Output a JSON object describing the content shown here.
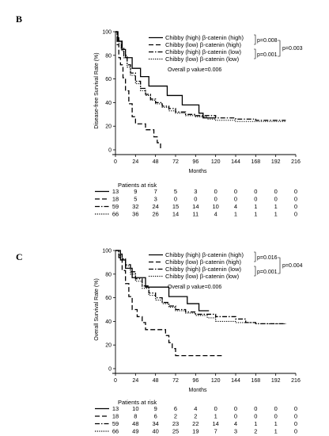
{
  "chart_data": [
    {
      "type": "line",
      "panel_label": "B",
      "ylabel": "Disease-free Survival Rate (%)",
      "xlabel": "Months",
      "xlim": [
        0,
        216
      ],
      "ylim": [
        0,
        100
      ],
      "xticks": [
        0,
        24,
        48,
        72,
        96,
        120,
        144,
        168,
        192,
        216
      ],
      "yticks": [
        0,
        20,
        40,
        60,
        80,
        100
      ],
      "legend": [
        "Chibby (high) β-catenin (high)",
        "Chibby (low) β-catenin (high)",
        "Chibby (high) β-catenin (low)",
        "Chibby (low) β-catenin (low)"
      ],
      "pvalues": [
        "p=0.008",
        "p=0.001",
        "p=0.003"
      ],
      "overall": "Overall p value=0.006",
      "risk_title": "Patients at risk",
      "risk_table": [
        [
          "13",
          "9",
          "7",
          "5",
          "3",
          "0",
          "0",
          "0",
          "0",
          "0"
        ],
        [
          "18",
          "5",
          "3",
          "0",
          "0",
          "0",
          "0",
          "0",
          "0",
          "0"
        ],
        [
          "59",
          "32",
          "24",
          "15",
          "14",
          "10",
          "4",
          "1",
          "1",
          "0"
        ],
        [
          "66",
          "36",
          "26",
          "14",
          "11",
          "4",
          "1",
          "1",
          "1",
          "0"
        ]
      ],
      "series": [
        {
          "style": "solid",
          "points": [
            [
              0,
              100
            ],
            [
              3,
              92
            ],
            [
              8,
              85
            ],
            [
              12,
              78
            ],
            [
              20,
              69
            ],
            [
              30,
              62
            ],
            [
              40,
              54
            ],
            [
              55,
              54
            ],
            [
              62,
              46
            ],
            [
              80,
              38
            ],
            [
              96,
              38
            ],
            [
              100,
              31
            ],
            [
              105,
              27
            ],
            [
              120,
              27
            ]
          ]
        },
        {
          "style": "dashed",
          "points": [
            [
              0,
              100
            ],
            [
              2,
              89
            ],
            [
              4,
              78
            ],
            [
              6,
              72
            ],
            [
              9,
              61
            ],
            [
              12,
              50
            ],
            [
              16,
              39
            ],
            [
              20,
              28
            ],
            [
              24,
              22
            ],
            [
              36,
              17
            ],
            [
              44,
              17
            ],
            [
              46,
              11
            ],
            [
              50,
              6
            ],
            [
              54,
              0
            ]
          ]
        },
        {
          "style": "dashdot",
          "points": [
            [
              0,
              100
            ],
            [
              2,
              96
            ],
            [
              4,
              92
            ],
            [
              7,
              86
            ],
            [
              10,
              80
            ],
            [
              14,
              72
            ],
            [
              18,
              65
            ],
            [
              24,
              58
            ],
            [
              30,
              52
            ],
            [
              36,
              47
            ],
            [
              42,
              43
            ],
            [
              48,
              40
            ],
            [
              56,
              37
            ],
            [
              64,
              35
            ],
            [
              72,
              32
            ],
            [
              84,
              30
            ],
            [
              96,
              29
            ],
            [
              120,
              27
            ],
            [
              144,
              26
            ],
            [
              168,
              25
            ],
            [
              192,
              25
            ],
            [
              204,
              25
            ]
          ]
        },
        {
          "style": "dotted",
          "points": [
            [
              0,
              100
            ],
            [
              2,
              95
            ],
            [
              4,
              90
            ],
            [
              7,
              84
            ],
            [
              10,
              78
            ],
            [
              14,
              70
            ],
            [
              18,
              63
            ],
            [
              24,
              56
            ],
            [
              30,
              50
            ],
            [
              36,
              46
            ],
            [
              42,
              42
            ],
            [
              48,
              39
            ],
            [
              56,
              36
            ],
            [
              64,
              33
            ],
            [
              72,
              31
            ],
            [
              84,
              29
            ],
            [
              96,
              28
            ],
            [
              110,
              26
            ],
            [
              120,
              25
            ],
            [
              144,
              24
            ],
            [
              168,
              24
            ],
            [
              192,
              24
            ],
            [
              204,
              24
            ]
          ]
        }
      ]
    },
    {
      "type": "line",
      "panel_label": "C",
      "ylabel": "Overall Survival Rate (%)",
      "xlabel": "Months",
      "xlim": [
        0,
        216
      ],
      "ylim": [
        0,
        100
      ],
      "xticks": [
        0,
        24,
        48,
        72,
        96,
        120,
        144,
        168,
        192,
        216
      ],
      "yticks": [
        0,
        20,
        40,
        60,
        80,
        100
      ],
      "legend": [
        "Chibby (high) β-catenin (high)",
        "Chibby (low) β-catenin (high)",
        "Chibby (high) β-catenin (low)",
        "Chibby (low) β-catenin (low)"
      ],
      "pvalues": [
        "p=0.016",
        "p=0.001",
        "p=0.004"
      ],
      "overall": "Overall p value=0.006",
      "risk_title": "Patients at risk",
      "risk_table": [
        [
          "13",
          "10",
          "9",
          "6",
          "4",
          "0",
          "0",
          "0",
          "0",
          "0"
        ],
        [
          "18",
          "8",
          "6",
          "2",
          "2",
          "1",
          "0",
          "0",
          "0",
          "0"
        ],
        [
          "59",
          "48",
          "34",
          "23",
          "22",
          "14",
          "4",
          "1",
          "1",
          "0"
        ],
        [
          "66",
          "49",
          "40",
          "25",
          "19",
          "7",
          "3",
          "2",
          "1",
          "0"
        ]
      ],
      "series": [
        {
          "style": "solid",
          "points": [
            [
              0,
              100
            ],
            [
              6,
              92
            ],
            [
              12,
              85
            ],
            [
              20,
              77
            ],
            [
              32,
              77
            ],
            [
              36,
              69
            ],
            [
              60,
              69
            ],
            [
              64,
              61
            ],
            [
              84,
              61
            ],
            [
              86,
              55
            ],
            [
              96,
              55
            ],
            [
              100,
              49
            ],
            [
              112,
              49
            ]
          ]
        },
        {
          "style": "dashed",
          "points": [
            [
              0,
              100
            ],
            [
              4,
              94
            ],
            [
              8,
              83
            ],
            [
              12,
              72
            ],
            [
              16,
              61
            ],
            [
              20,
              50
            ],
            [
              26,
              44
            ],
            [
              32,
              39
            ],
            [
              36,
              33
            ],
            [
              58,
              33
            ],
            [
              60,
              28
            ],
            [
              64,
              22
            ],
            [
              68,
              17
            ],
            [
              72,
              11
            ],
            [
              130,
              11
            ]
          ]
        },
        {
          "style": "dashdot",
          "points": [
            [
              0,
              100
            ],
            [
              4,
              97
            ],
            [
              8,
              93
            ],
            [
              12,
              88
            ],
            [
              18,
              82
            ],
            [
              24,
              76
            ],
            [
              32,
              70
            ],
            [
              40,
              64
            ],
            [
              48,
              60
            ],
            [
              56,
              56
            ],
            [
              64,
              53
            ],
            [
              72,
              50
            ],
            [
              84,
              48
            ],
            [
              96,
              46
            ],
            [
              120,
              44
            ],
            [
              144,
              42
            ],
            [
              156,
              39
            ],
            [
              168,
              38
            ],
            [
              192,
              38
            ],
            [
              204,
              38
            ]
          ]
        },
        {
          "style": "dotted",
          "points": [
            [
              0,
              100
            ],
            [
              4,
              96
            ],
            [
              8,
              92
            ],
            [
              12,
              87
            ],
            [
              18,
              80
            ],
            [
              24,
              74
            ],
            [
              32,
              68
            ],
            [
              40,
              62
            ],
            [
              48,
              58
            ],
            [
              56,
              55
            ],
            [
              64,
              52
            ],
            [
              72,
              49
            ],
            [
              84,
              47
            ],
            [
              96,
              45
            ],
            [
              110,
              43
            ],
            [
              120,
              40
            ],
            [
              144,
              39
            ],
            [
              168,
              38
            ],
            [
              192,
              38
            ],
            [
              204,
              38
            ]
          ]
        }
      ]
    }
  ]
}
